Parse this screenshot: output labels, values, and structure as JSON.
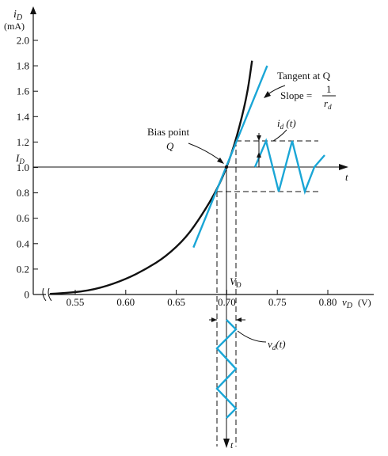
{
  "chart_data": {
    "type": "line",
    "y_axis_label": "i",
    "y_axis_label_sub": "D",
    "y_axis_unit": "(mA)",
    "x_axis_label": "v",
    "x_axis_label_sub": "D",
    "x_axis_unit": "(V)",
    "y_ticks": [
      "2.0",
      "1.8",
      "1.6",
      "1.4",
      "1.2",
      "1.0",
      "0.8",
      "0.6",
      "0.4",
      "0.2",
      "0"
    ],
    "x_ticks": [
      "0.55",
      "0.60",
      "0.65",
      "0.70",
      "0.75",
      "0.80"
    ],
    "ylim": [
      0,
      2.0
    ],
    "xlim": [
      0.525,
      0.825
    ],
    "bias_point": {
      "v": 0.7,
      "i": 1.0
    },
    "series": [
      {
        "name": "",
        "x": [
          0.525,
          0.55,
          0.575,
          0.6,
          0.62,
          0.64,
          0.66,
          0.675,
          0.69,
          0.7,
          0.71,
          0.72,
          0.725
        ],
        "y": [
          0.005,
          0.015,
          0.05,
          0.12,
          0.2,
          0.3,
          0.45,
          0.62,
          0.82,
          1.0,
          1.24,
          1.56,
          1.84
        ]
      }
    ],
    "tangent_line": {
      "v_start": 0.667,
      "i_start": 0.37,
      "v_end": 0.74,
      "i_end": 1.8
    },
    "labels": {
      "bias_point": "Bias point",
      "q": "Q",
      "tangent": "Tangent at Q",
      "slope": "Slope = ",
      "slope_num": "1",
      "slope_den": "r",
      "slope_den_sub": "d",
      "id_t": "i",
      "id_t_sub": "d",
      "id_t_arg": " (t)",
      "vd_t": "v",
      "vd_t_sub": "d",
      "vd_t_arg": "(t)",
      "I_D": "I",
      "I_D_sub": "D",
      "V_D": "V",
      "V_D_sub": "D",
      "t_right": "t",
      "t_bottom": "t"
    },
    "colors": {
      "curve": "#111111",
      "signal": "#1aa6d6"
    }
  }
}
